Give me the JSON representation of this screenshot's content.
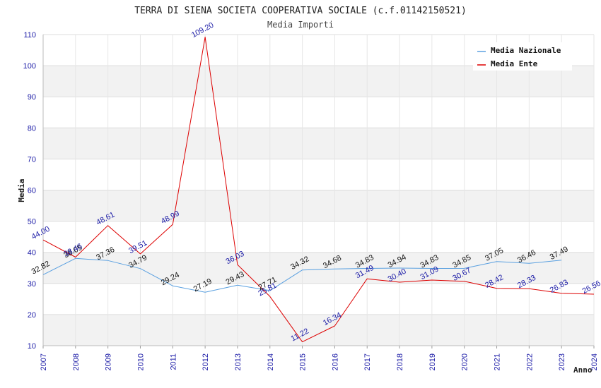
{
  "chart_data": {
    "type": "line",
    "title": "TERRA DI SIENA SOCIETA COOPERATIVA SOCIALE (c.f.01142150521)",
    "subtitle": "Media Importi",
    "xlabel": "Anno",
    "ylabel": "Media",
    "ylim": [
      10,
      110
    ],
    "yticks": [
      10,
      20,
      30,
      40,
      50,
      60,
      70,
      80,
      90,
      100,
      110
    ],
    "x": [
      "2007",
      "2008",
      "2009",
      "2010",
      "2011",
      "2012",
      "2013",
      "2014",
      "2015",
      "2016",
      "2017",
      "2018",
      "2019",
      "2020",
      "2021",
      "2022",
      "2023",
      "2024"
    ],
    "legend_position": "top-right",
    "grid": true,
    "series": [
      {
        "name": "Media Nazionale",
        "color": "#5aa0e0",
        "values": [
          32.82,
          38.05,
          37.36,
          34.79,
          29.24,
          27.19,
          29.43,
          27.71,
          34.32,
          34.68,
          34.83,
          34.94,
          34.83,
          34.85,
          37.05,
          36.46,
          37.49,
          null
        ],
        "labels": [
          "32.82",
          "38.05",
          "37.36",
          "34.79",
          "29.24",
          "27.19",
          "29.43",
          "27.71",
          "34.32",
          "34.68",
          "34.83",
          "34.94",
          "34.83",
          "34.85",
          "37.05",
          "36.46",
          "37.49",
          null
        ]
      },
      {
        "name": "Media Ente",
        "color": "#dd0000",
        "values": [
          44.0,
          38.46,
          48.61,
          39.51,
          48.99,
          109.2,
          36.03,
          25.81,
          11.22,
          16.34,
          31.49,
          30.4,
          31.09,
          30.67,
          28.42,
          28.33,
          26.83,
          26.56
        ],
        "labels": [
          "44.00",
          "38.46",
          "48.61",
          "39.51",
          "48.99",
          "109.20",
          "36.03",
          "25.81",
          "11.22",
          "16.34",
          "31.49",
          "30.40",
          "31.09",
          "30.67",
          "28.42",
          "28.33",
          "26.83",
          "26.56"
        ]
      }
    ]
  }
}
